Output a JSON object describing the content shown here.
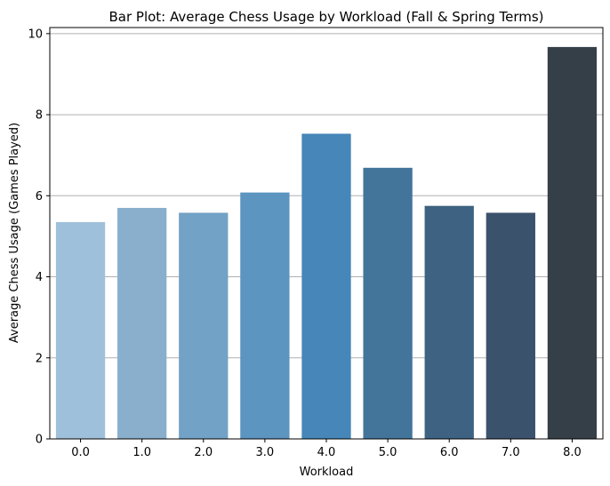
{
  "chart_data": {
    "type": "bar",
    "title": "Bar Plot: Average Chess Usage by Workload (Fall & Spring Terms)",
    "xlabel": "Workload",
    "ylabel": "Average Chess Usage (Games Played)",
    "categories": [
      "0.0",
      "1.0",
      "2.0",
      "3.0",
      "4.0",
      "5.0",
      "6.0",
      "7.0",
      "8.0"
    ],
    "values": [
      5.35,
      5.7,
      5.58,
      6.08,
      7.53,
      6.69,
      5.75,
      5.58,
      9.67
    ],
    "colors": [
      "#9fc0da",
      "#89afcd",
      "#72a2c5",
      "#5b95c0",
      "#4686b9",
      "#43759b",
      "#3d6282",
      "#3b526c",
      "#353f48"
    ],
    "ylim": [
      0,
      10.15
    ],
    "yticks": [
      0,
      2,
      4,
      6,
      8,
      10
    ],
    "grid": "y"
  }
}
